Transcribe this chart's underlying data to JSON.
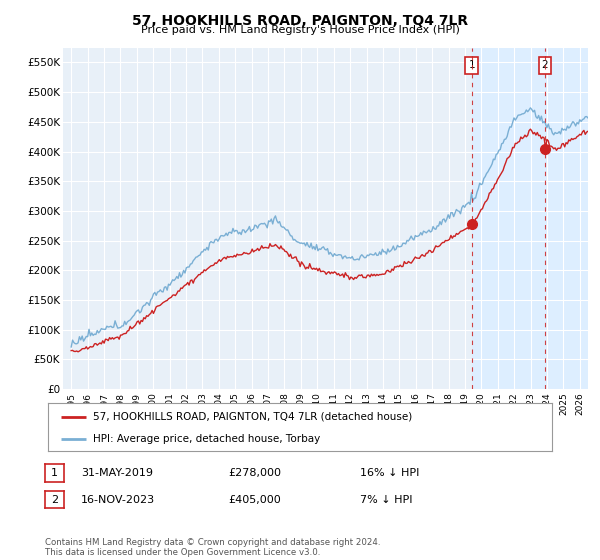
{
  "title": "57, HOOKHILLS ROAD, PAIGNTON, TQ4 7LR",
  "subtitle": "Price paid vs. HM Land Registry's House Price Index (HPI)",
  "ylabel_ticks": [
    "£0",
    "£50K",
    "£100K",
    "£150K",
    "£200K",
    "£250K",
    "£300K",
    "£350K",
    "£400K",
    "£450K",
    "£500K",
    "£550K"
  ],
  "ytick_values": [
    0,
    50000,
    100000,
    150000,
    200000,
    250000,
    300000,
    350000,
    400000,
    450000,
    500000,
    550000
  ],
  "ylim": [
    0,
    575000
  ],
  "sale1_date": 2019.42,
  "sale1_price": 278000,
  "sale2_date": 2023.88,
  "sale2_price": 405000,
  "hpi_color": "#7aafd4",
  "price_color": "#cc2222",
  "vline_color": "#cc2222",
  "shade_color": "#ddeeff",
  "chart_bg": "#e8f0f8",
  "grid_color": "#ffffff",
  "legend_line1": "57, HOOKHILLS ROAD, PAIGNTON, TQ4 7LR (detached house)",
  "legend_line2": "HPI: Average price, detached house, Torbay",
  "table_row1": [
    "1",
    "31-MAY-2019",
    "£278,000",
    "16% ↓ HPI"
  ],
  "table_row2": [
    "2",
    "16-NOV-2023",
    "£405,000",
    "7% ↓ HPI"
  ],
  "footer": "Contains HM Land Registry data © Crown copyright and database right 2024.\nThis data is licensed under the Open Government Licence v3.0.",
  "xtick_years": [
    1995,
    1996,
    1997,
    1998,
    1999,
    2000,
    2001,
    2002,
    2003,
    2004,
    2005,
    2006,
    2007,
    2008,
    2009,
    2010,
    2011,
    2012,
    2013,
    2014,
    2015,
    2016,
    2017,
    2018,
    2019,
    2020,
    2021,
    2022,
    2023,
    2024,
    2025,
    2026
  ],
  "xlim_left": 1994.5,
  "xlim_right": 2026.5
}
